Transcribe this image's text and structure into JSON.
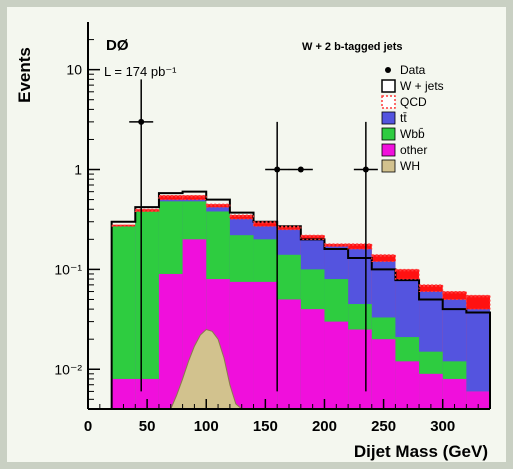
{
  "chart_data": {
    "type": "histogram",
    "experiment": "DØ",
    "luminosity": "L = 174 pb⁻¹",
    "title": "W + 2 b-tagged jets",
    "xlabel": "Dijet Mass (GeV)",
    "ylabel": "Events",
    "xlim": [
      0,
      340
    ],
    "ylim": [
      0.004,
      30
    ],
    "yscale": "log",
    "x_ticks": [
      0,
      50,
      100,
      150,
      200,
      250,
      300
    ],
    "y_ticks": [
      {
        "value": 10,
        "label": "10"
      },
      {
        "value": 1,
        "label": "1"
      },
      {
        "value": 0.1,
        "label": "10⁻¹"
      },
      {
        "value": 0.01,
        "label": "10⁻²"
      }
    ],
    "bin_edges": [
      20,
      40,
      60,
      80,
      100,
      120,
      140,
      160,
      180,
      200,
      220,
      240,
      260,
      280,
      300,
      320,
      340
    ],
    "legend_position": "top-right",
    "legend": [
      {
        "label": "Data",
        "kind": "marker"
      },
      {
        "label": "W + jets",
        "kind": "outline"
      },
      {
        "label": "QCD",
        "kind": "hatch"
      },
      {
        "label": "tt̄",
        "kind": "fill"
      },
      {
        "label": "Wbb̄",
        "kind": "fill"
      },
      {
        "label": "other",
        "kind": "fill"
      },
      {
        "label": "WH",
        "kind": "fill"
      }
    ],
    "stack_layers": [
      {
        "name": "other",
        "color": "#f00fdc",
        "cumulative": [
          0.008,
          0.008,
          0.09,
          0.2,
          0.08,
          0.075,
          0.075,
          0.05,
          0.04,
          0.03,
          0.025,
          0.02,
          0.012,
          0.009,
          0.008,
          0.006
        ]
      },
      {
        "name": "Wbb",
        "color": "#2ecc40",
        "cumulative": [
          0.27,
          0.38,
          0.48,
          0.48,
          0.38,
          0.22,
          0.2,
          0.14,
          0.1,
          0.08,
          0.045,
          0.033,
          0.021,
          0.015,
          0.012,
          0.006
        ]
      },
      {
        "name": "tt",
        "color": "#5454df",
        "cumulative": [
          0.27,
          0.38,
          0.5,
          0.5,
          0.42,
          0.32,
          0.27,
          0.25,
          0.2,
          0.17,
          0.16,
          0.12,
          0.08,
          0.06,
          0.05,
          0.04
        ]
      },
      {
        "name": "QCD",
        "color": "#ff1111",
        "cumulative": [
          0.28,
          0.4,
          0.55,
          0.55,
          0.45,
          0.35,
          0.3,
          0.27,
          0.22,
          0.18,
          0.18,
          0.14,
          0.1,
          0.07,
          0.06,
          0.055
        ]
      }
    ],
    "w_jets_outline": [
      0.3,
      0.42,
      0.58,
      0.6,
      0.5,
      0.37,
      0.3,
      0.27,
      0.2,
      0.16,
      0.13,
      0.1,
      0.078,
      0.05,
      0.04,
      0.037
    ],
    "wh_signal": {
      "color": "#d2c28e",
      "x": [
        70,
        75,
        80,
        85,
        90,
        95,
        100,
        105,
        110,
        115,
        120,
        125,
        130
      ],
      "y": [
        0.004,
        0.0055,
        0.008,
        0.012,
        0.017,
        0.022,
        0.025,
        0.024,
        0.02,
        0.013,
        0.007,
        0.0045,
        0.004
      ]
    },
    "data_points": [
      {
        "x": 45,
        "y": 3,
        "ylo": 0.006,
        "yhi": 8
      },
      {
        "x": 160,
        "y": 1,
        "ylo": 0.006,
        "yhi": 3
      },
      {
        "x": 180,
        "y": 1,
        "ylo": null,
        "yhi": null
      },
      {
        "x": 235,
        "y": 1,
        "ylo": 0.006,
        "yhi": 3
      }
    ]
  }
}
